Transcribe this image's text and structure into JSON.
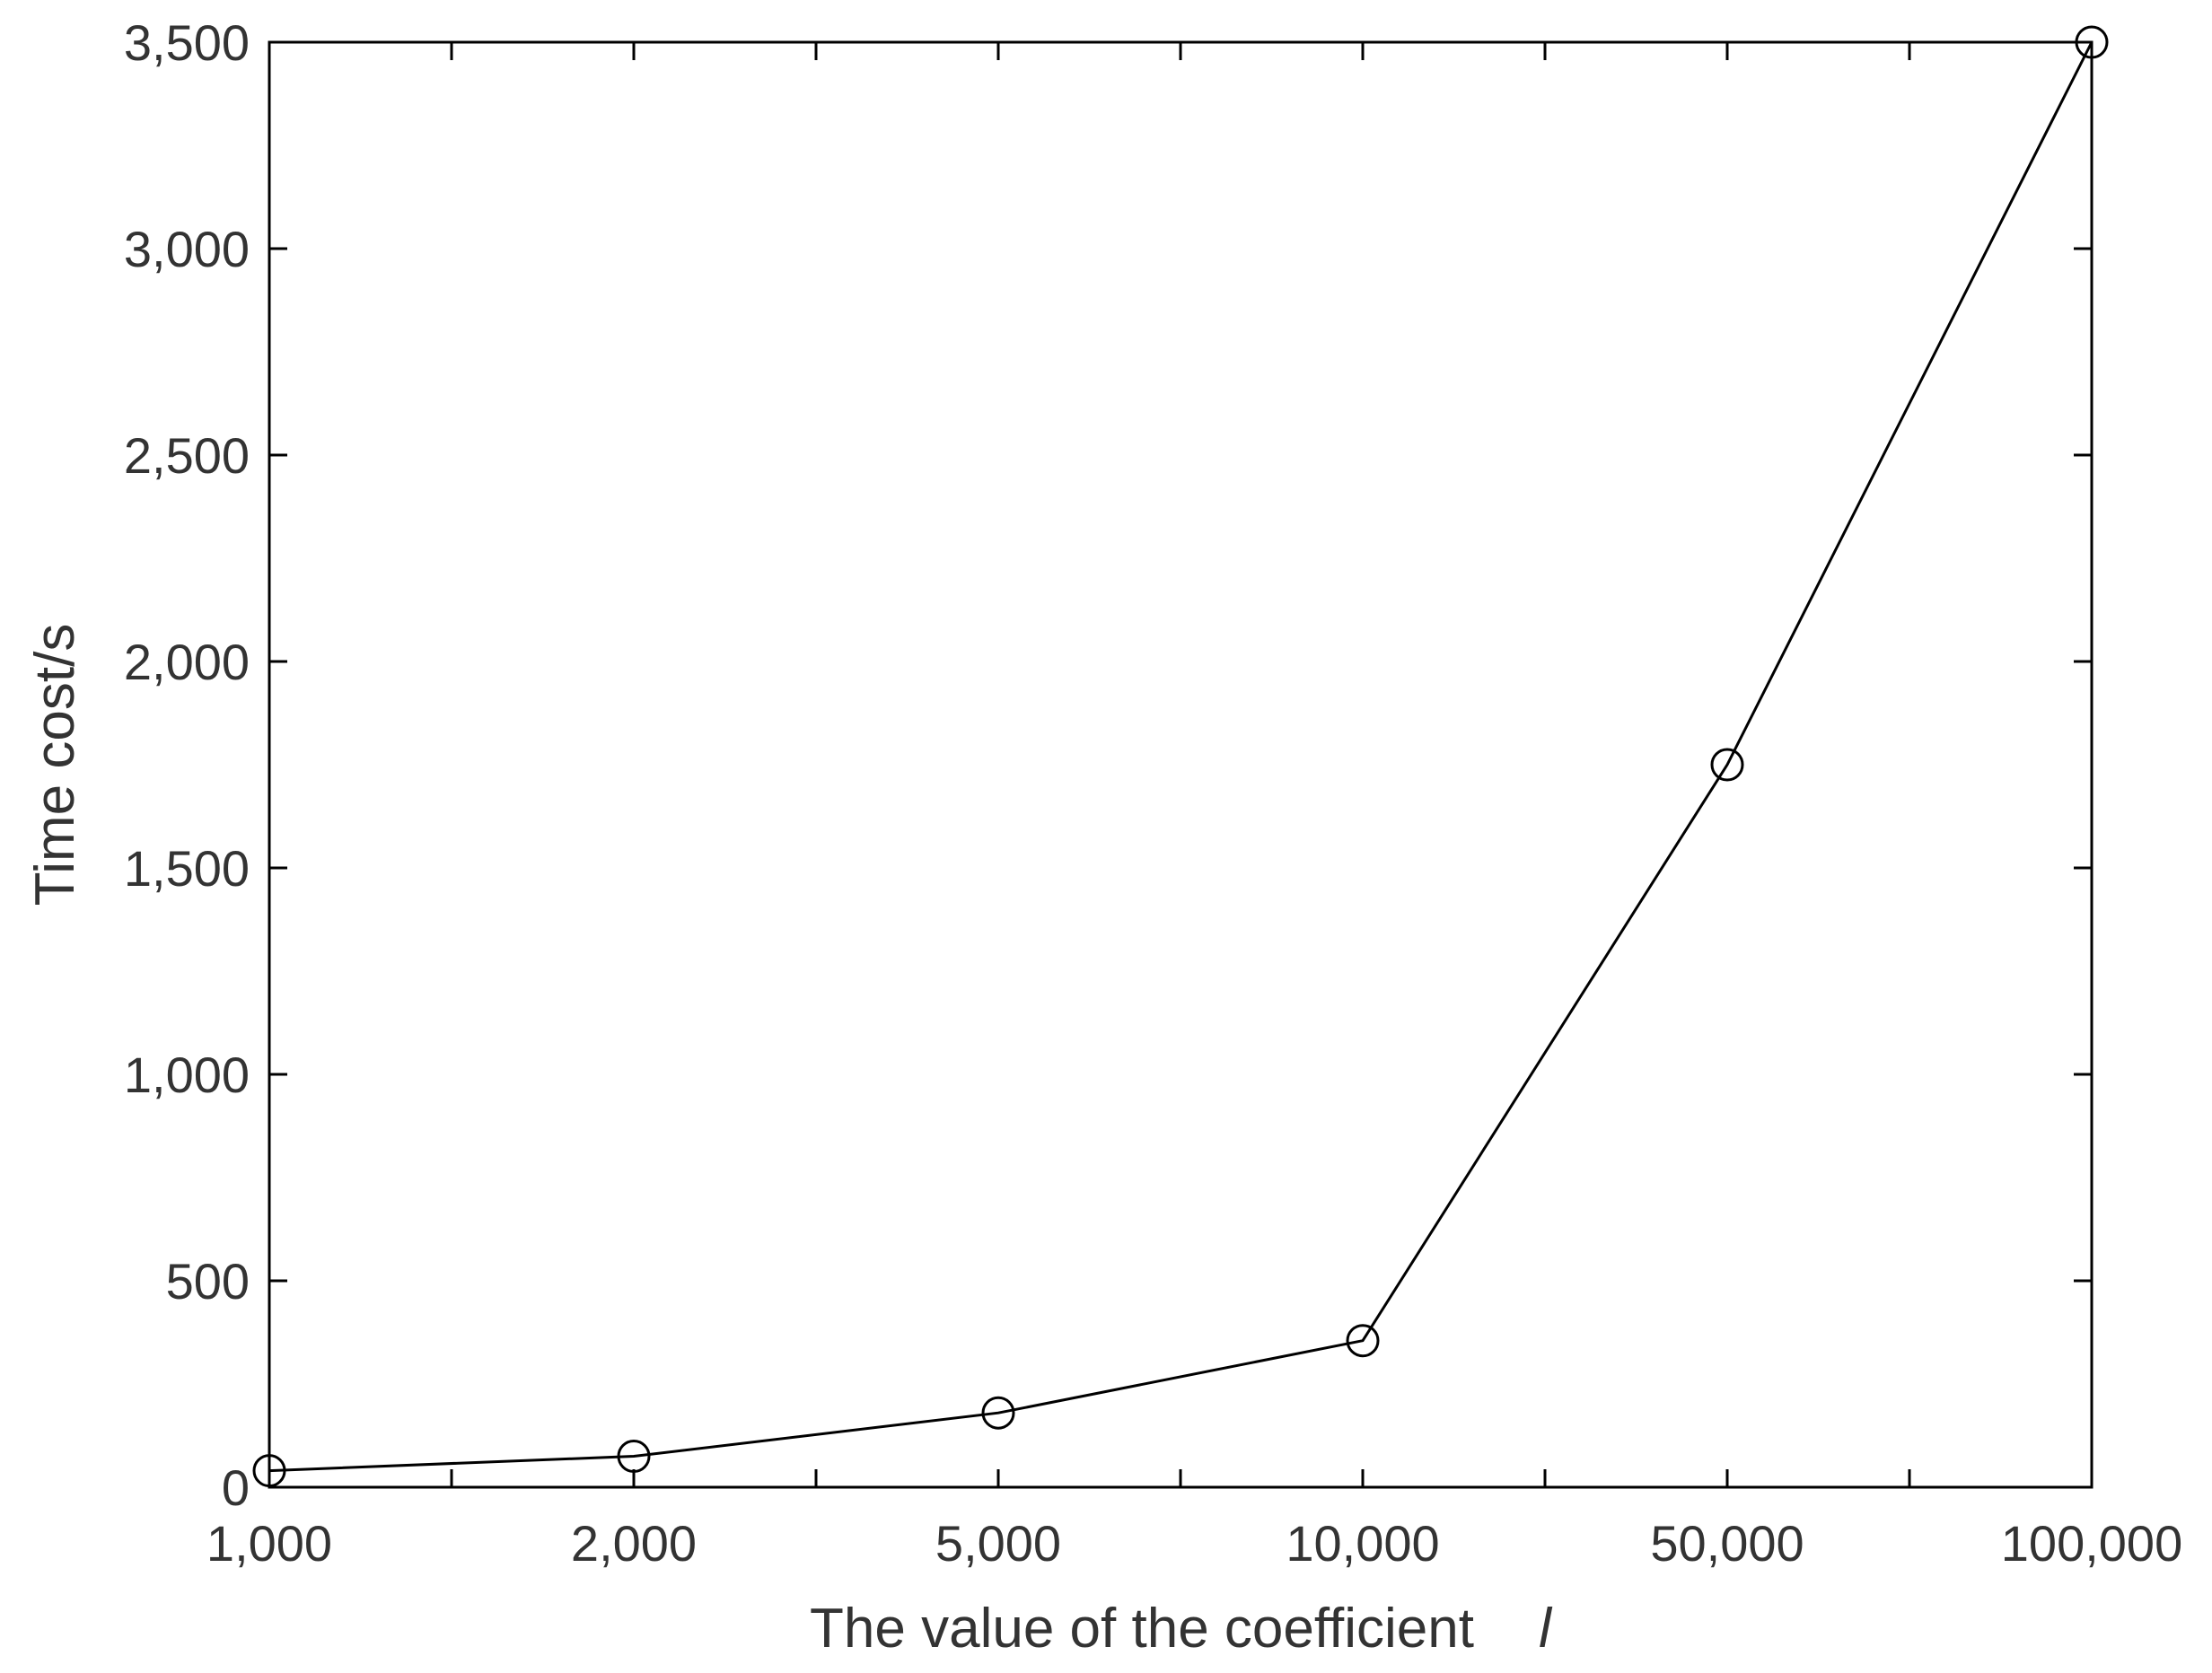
{
  "chart_data": {
    "type": "line",
    "title": "",
    "xlabel": "The value of the coefficient",
    "xlabel_symbol": "l",
    "ylabel": "Time cost/s",
    "categories": [
      "1,000",
      "2,000",
      "5,000",
      "10,000",
      "50,000",
      "100,000"
    ],
    "x": [
      1000,
      2000,
      5000,
      10000,
      50000,
      100000
    ],
    "y_ticks": [
      "0",
      "500",
      "1,000",
      "1,500",
      "2,000",
      "2,500",
      "3,000",
      "3,500"
    ],
    "ylim": [
      0,
      3500
    ],
    "series": [
      {
        "values": [
          40,
          75,
          180,
          355,
          1750,
          3500
        ],
        "marker": "circle"
      }
    ],
    "grid": false,
    "box": true,
    "line_color": "#000000"
  }
}
